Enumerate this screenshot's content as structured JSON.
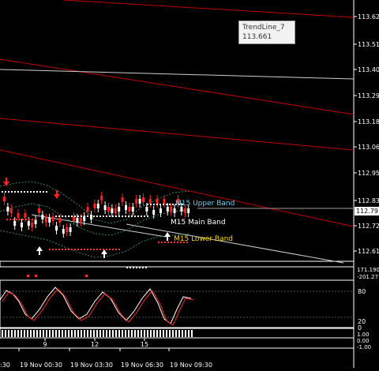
{
  "price_axis": {
    "labels": [
      "113.627",
      "113.512",
      "113.401",
      "113.290",
      "113.180",
      "113.063",
      "112.952",
      "112.837",
      "112.721",
      "112.610"
    ],
    "current_price": "112.79"
  },
  "tooltip": {
    "name": "TrendLine_7",
    "value": "113.661"
  },
  "band_labels": {
    "upper": "M15 Upper Band",
    "main": "M15 Main Band",
    "lower": "M15 Lower Band"
  },
  "colors": {
    "up_candle": "#ffffff",
    "down_candle": "#ff2020",
    "upper_band_label": "#5fd7ff",
    "main_band_label": "#ffffff",
    "lower_band_label": "#ffd700",
    "trendline": "#c00000"
  },
  "subwindows": {
    "indicator1": {
      "labels": [
        "171.190",
        "-201.27"
      ]
    },
    "stochastic": {
      "labels": [
        "80",
        "20",
        "0"
      ]
    },
    "indicator3": {
      "labels": [
        "1.00",
        "0.00",
        "-1.00"
      ]
    }
  },
  "time_axis": {
    "day_marks": [
      "9",
      "12",
      "15"
    ],
    "labels": [
      "19 Nov 00:30",
      "19 Nov 03:30",
      "19 Nov 06:30",
      "19 Nov 09:30"
    ],
    "edge_label": ":30"
  }
}
